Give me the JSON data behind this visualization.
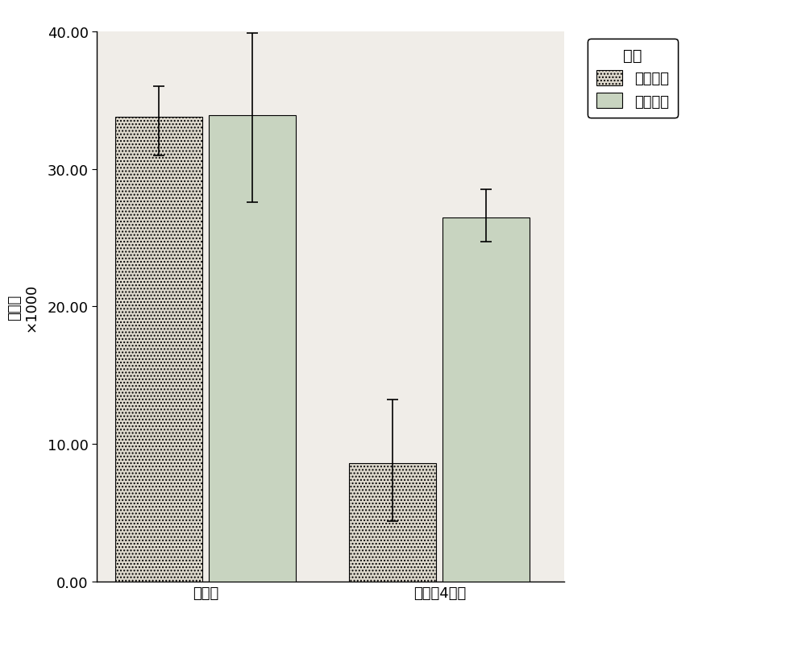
{
  "groups": [
    "复苏前",
    "复苏后4小时"
  ],
  "series": [
    {
      "name": "常规方法",
      "values": [
        33.8,
        8.6
      ],
      "errors_upper": [
        2.2,
        4.6
      ],
      "errors_lower": [
        2.8,
        4.2
      ]
    },
    {
      "name": "改进方法",
      "values": [
        33.9,
        26.5
      ],
      "errors_upper": [
        6.0,
        2.0
      ],
      "errors_lower": [
        6.3,
        1.8
      ]
    }
  ],
  "ylabel_lines": [
    "细",
    "胞",
    "数",
    "×",
    "1",
    "0",
    "0",
    "0"
  ],
  "ylim": [
    0,
    40
  ],
  "yticks": [
    0.0,
    10.0,
    20.0,
    30.0,
    40.0
  ],
  "ytick_labels": [
    "0.00",
    "10.00",
    "20.00",
    "30.00",
    "40.00"
  ],
  "legend_title": "分组",
  "bar_width": 0.28,
  "figure_facecolor": "#ffffff",
  "axes_facecolor": "#f0ede8",
  "bar_facecolor_1": "#ddd8cc",
  "bar_facecolor_2": "#c8d4c0",
  "font_size": 13,
  "group_positions": [
    0.35,
    1.1
  ]
}
